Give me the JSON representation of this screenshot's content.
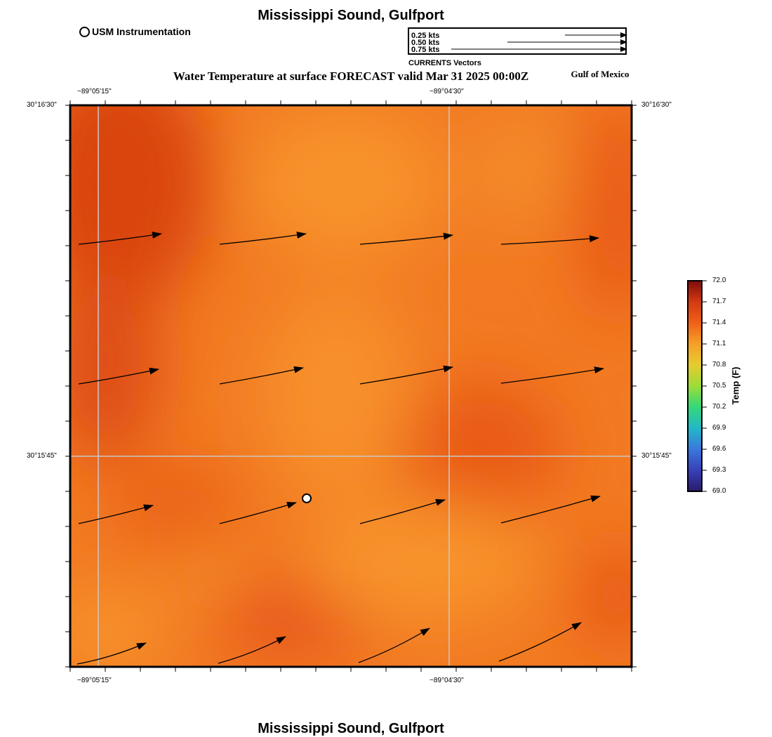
{
  "title": "Mississippi Sound, Gulfport",
  "footer_title": "Mississippi Sound, Gulfport",
  "station_legend": "USM Instrumentation",
  "vector_legend": {
    "rows": [
      "0.25 kts",
      "0.50 kts",
      "0.75 kts"
    ],
    "caption": "CURRENTS Vectors"
  },
  "map_title": "Water Temperature at surface FORECAST valid Mar 31 2025 00:00Z",
  "region_label": "Gulf of Mexico",
  "axes": {
    "lon_labels": [
      "−89°05'15\"",
      "−89°04'30\""
    ],
    "lat_labels": [
      "30°16'30\"",
      "30°15'45\""
    ]
  },
  "colorbar": {
    "title": "Temp (F)",
    "ticks": [
      "72.0",
      "71.7",
      "71.4",
      "71.1",
      "70.8",
      "70.5",
      "70.2",
      "69.9",
      "69.6",
      "69.3",
      "69.0"
    ],
    "colors": [
      "#7f0b0b",
      "#d23a12",
      "#f06018",
      "#f5a028",
      "#e6cc30",
      "#9cdc38",
      "#34d87a",
      "#22b8c8",
      "#3a78dc",
      "#3840b8",
      "#2a1a6a"
    ]
  },
  "map_colors": {
    "base": "#f27a22",
    "warm": "#d94510",
    "cool": "#f7932c"
  },
  "currents": {
    "rows": 4,
    "cols": 4
  }
}
